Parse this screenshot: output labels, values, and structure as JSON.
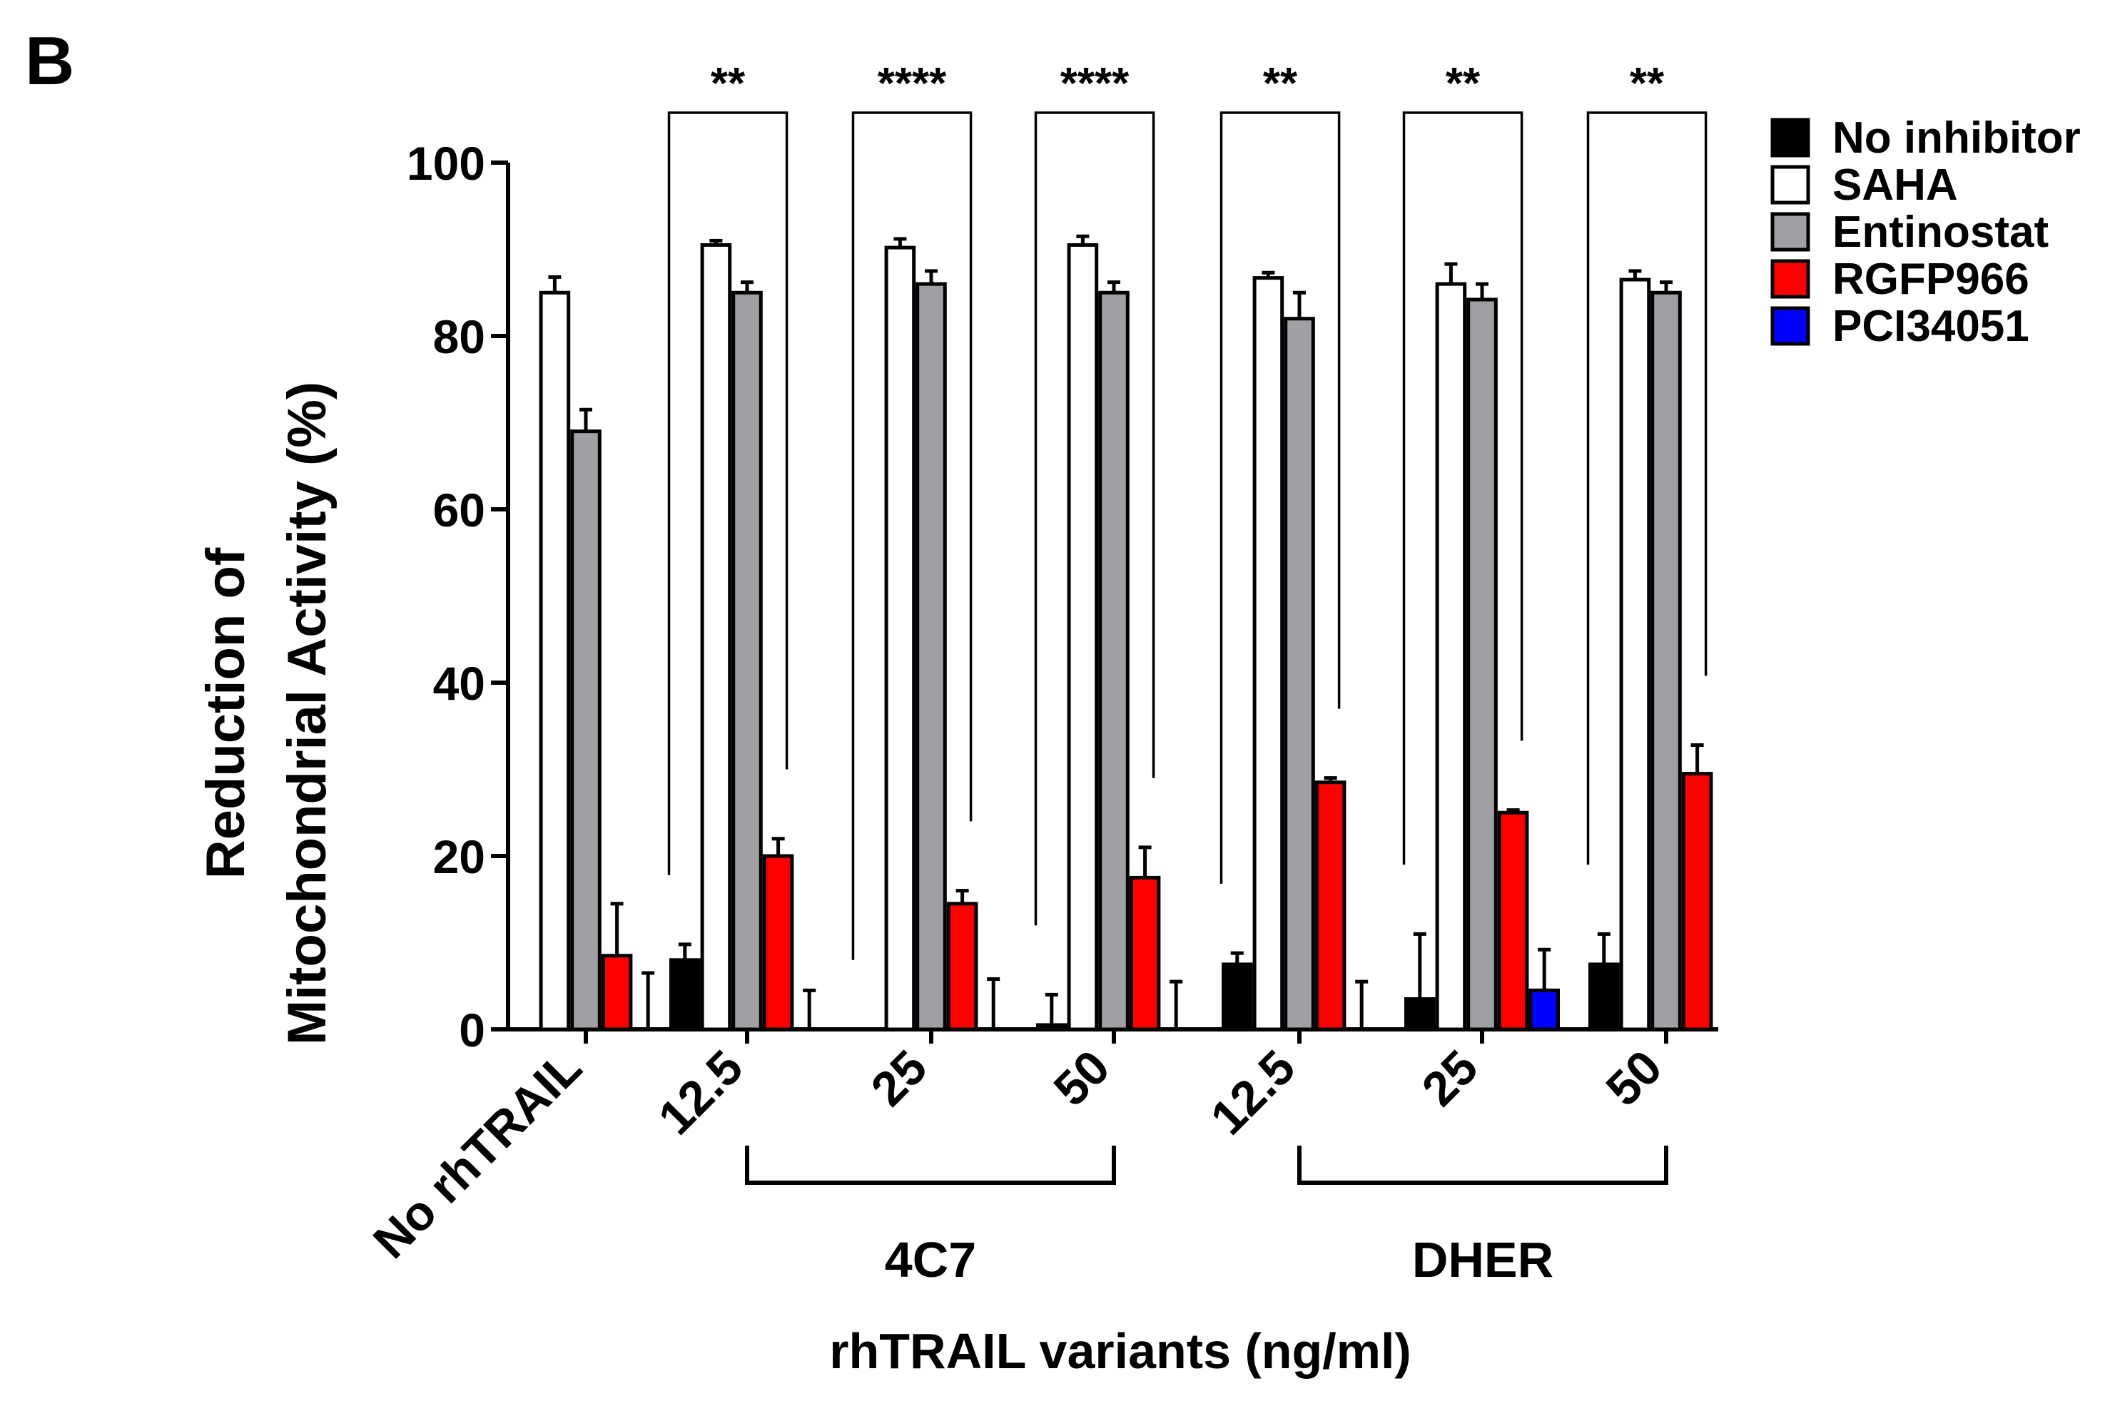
{
  "panel_label": "B",
  "chart_data": {
    "type": "bar",
    "ylabel_line1": "Reduction of",
    "ylabel_line2": "Mitochondrial Activity (%)",
    "xlabel": "rhTRAIL variants (ng/ml)",
    "ylim": [
      0,
      100
    ],
    "yticks": [
      0,
      20,
      40,
      60,
      80,
      100
    ],
    "groups": [
      {
        "label": "No rhTRAIL"
      },
      {
        "label": "12.5"
      },
      {
        "label": "25"
      },
      {
        "label": "50"
      },
      {
        "label": "12.5"
      },
      {
        "label": "25"
      },
      {
        "label": "50"
      }
    ],
    "group_brackets": [
      {
        "label": "4C7",
        "from_group": 1,
        "to_group": 3
      },
      {
        "label": "DHER",
        "from_group": 4,
        "to_group": 6
      }
    ],
    "series": [
      {
        "name": "No inhibitor",
        "color": "#000000",
        "values": [
          0,
          8,
          0,
          0.5,
          7.5,
          3.5,
          7.5
        ],
        "errors": [
          0,
          1.8,
          0,
          3.5,
          1.3,
          7.5,
          3.5
        ]
      },
      {
        "name": "SAHA",
        "color": "#ffffff",
        "values": [
          85,
          90.5,
          90.2,
          90.5,
          86.7,
          86,
          86.5
        ],
        "errors": [
          1.8,
          0.5,
          1,
          1,
          0.6,
          2.3,
          1
        ]
      },
      {
        "name": "Entinostat",
        "color": "#a0a0a4",
        "values": [
          69,
          85,
          86,
          85,
          82,
          84.2,
          85
        ],
        "errors": [
          2.5,
          1.2,
          1.5,
          1.2,
          3,
          1.8,
          1.2
        ]
      },
      {
        "name": "RGFP966",
        "color": "#ff0000",
        "values": [
          8.5,
          20,
          14.5,
          17.5,
          28.5,
          25,
          29.5
        ],
        "errors": [
          6,
          2,
          1.5,
          3.5,
          0.5,
          0.3,
          3.3
        ]
      },
      {
        "name": "PCI34051",
        "color": "#0000ff",
        "values": [
          0,
          0,
          0,
          0,
          0,
          4.5,
          0
        ],
        "errors": [
          6.5,
          4.5,
          5.8,
          5.5,
          5.5,
          4.7,
          0
        ]
      }
    ],
    "significance": [
      {
        "group": 1,
        "label": "**"
      },
      {
        "group": 2,
        "label": "****"
      },
      {
        "group": 3,
        "label": "****"
      },
      {
        "group": 4,
        "label": "**"
      },
      {
        "group": 5,
        "label": "**"
      },
      {
        "group": 6,
        "label": "**"
      }
    ]
  }
}
